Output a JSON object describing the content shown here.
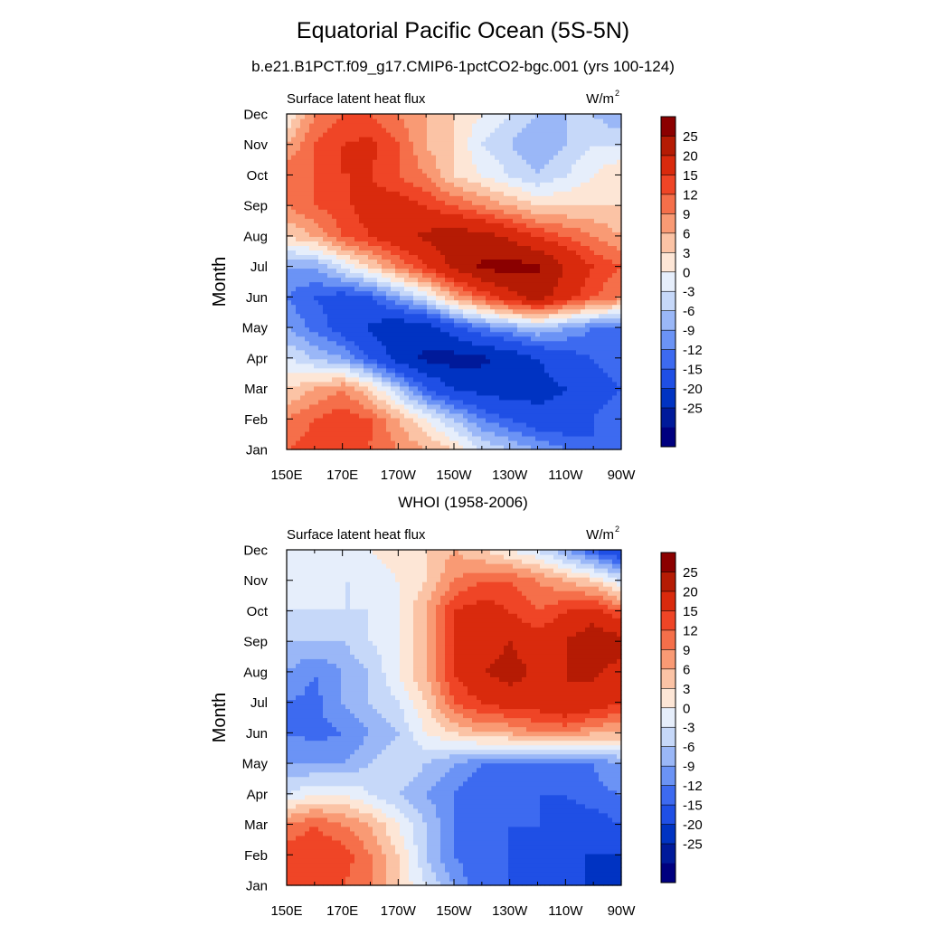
{
  "title": "Equatorial Pacific Ocean (5S-5N)",
  "subtitle": "b.e21.B1PCT.f09_g17.CMIP6-1pctCO2-bgc.001 (yrs 100-124)",
  "chart_data": [
    {
      "type": "heatmap",
      "title": "",
      "left_string": "Surface latent heat flux",
      "units_label": "W/m",
      "units_sup": "2",
      "xlabel": "",
      "ylabel": "Month",
      "x_ticks": [
        "150E",
        "170E",
        "170W",
        "150W",
        "130W",
        "110W",
        "90W"
      ],
      "x_range_lon_east": [
        150,
        270
      ],
      "y_ticks": [
        "Jan",
        "Feb",
        "Mar",
        "Apr",
        "May",
        "Jun",
        "Jul",
        "Aug",
        "Sep",
        "Oct",
        "Nov",
        "Dec"
      ],
      "colorbar_labels": [
        "25",
        "20",
        "15",
        "12",
        "9",
        "6",
        "3",
        "0",
        "-3",
        "-6",
        "-9",
        "-12",
        "-15",
        "-20",
        "-25"
      ],
      "lon_east": [
        150,
        160,
        170,
        180,
        190,
        200,
        210,
        220,
        230,
        240,
        250,
        260,
        270
      ],
      "values": [
        [
          12,
          14,
          14,
          12,
          9,
          6,
          3,
          -3,
          -6,
          -9,
          -12,
          -15,
          -15
        ],
        [
          9,
          12,
          14,
          12,
          6,
          0,
          -6,
          -12,
          -15,
          -18,
          -18,
          -15,
          -12
        ],
        [
          3,
          6,
          9,
          3,
          -6,
          -15,
          -20,
          -22,
          -23,
          -22,
          -20,
          -17,
          -15
        ],
        [
          -3,
          -6,
          -9,
          -15,
          -22,
          -26,
          -27,
          -26,
          -24,
          -20,
          -17,
          -15,
          -12
        ],
        [
          -9,
          -13,
          -17,
          -21,
          -24,
          -23,
          -17,
          -12,
          -9,
          -6,
          -9,
          -12,
          -12
        ],
        [
          -12,
          -15,
          -17,
          -15,
          -9,
          -3,
          6,
          12,
          18,
          22,
          17,
          12,
          9
        ],
        [
          -9,
          -9,
          -3,
          3,
          9,
          15,
          21,
          26,
          27,
          26,
          20,
          15,
          12
        ],
        [
          3,
          6,
          12,
          15,
          18,
          21,
          23,
          22,
          19,
          15,
          12,
          9,
          6
        ],
        [
          9,
          12,
          14,
          17,
          17,
          15,
          12,
          9,
          6,
          3,
          3,
          3,
          3
        ],
        [
          12,
          12,
          15,
          15,
          12,
          9,
          3,
          0,
          -3,
          -6,
          -3,
          0,
          3
        ],
        [
          6,
          12,
          15,
          16,
          12,
          6,
          3,
          -3,
          -6,
          -9,
          -6,
          -3,
          -3
        ],
        [
          0,
          9,
          12,
          12,
          9,
          6,
          3,
          0,
          -3,
          -6,
          -6,
          -6,
          -9
        ]
      ]
    },
    {
      "type": "heatmap",
      "title": "WHOI (1958-2006)",
      "left_string": "Surface latent heat flux",
      "units_label": "W/m",
      "units_sup": "2",
      "xlabel": "",
      "ylabel": "Month",
      "x_ticks": [
        "150E",
        "170E",
        "170W",
        "150W",
        "130W",
        "110W",
        "90W"
      ],
      "x_range_lon_east": [
        150,
        270
      ],
      "y_ticks": [
        "Jan",
        "Feb",
        "Mar",
        "Apr",
        "May",
        "Jun",
        "Jul",
        "Aug",
        "Sep",
        "Oct",
        "Nov",
        "Dec"
      ],
      "colorbar_labels": [
        "25",
        "20",
        "15",
        "12",
        "9",
        "6",
        "3",
        "0",
        "-3",
        "-6",
        "-9",
        "-12",
        "-15",
        "-20",
        "-25"
      ],
      "lon_east": [
        150,
        160,
        170,
        180,
        190,
        200,
        210,
        220,
        230,
        240,
        250,
        260,
        270
      ],
      "values": [
        [
          14,
          14,
          12,
          9,
          3,
          -3,
          -9,
          -15,
          -15,
          -15,
          -18,
          -21,
          -23
        ],
        [
          14,
          15,
          14,
          9,
          3,
          -6,
          -12,
          -15,
          -15,
          -17,
          -20,
          -20,
          -20
        ],
        [
          9,
          12,
          9,
          6,
          0,
          -6,
          -12,
          -15,
          -15,
          -15,
          -17,
          -17,
          -15
        ],
        [
          -3,
          0,
          0,
          -3,
          -6,
          -9,
          -12,
          -15,
          -13,
          -15,
          -15,
          -13,
          -12
        ],
        [
          -9,
          -9,
          -9,
          -6,
          -3,
          -6,
          -9,
          -12,
          -12,
          -12,
          -13,
          -12,
          -9
        ],
        [
          -12,
          -13,
          -12,
          -9,
          -6,
          0,
          3,
          6,
          6,
          9,
          9,
          6,
          6
        ],
        [
          -12,
          -13,
          -9,
          -6,
          -3,
          3,
          12,
          15,
          17,
          17,
          20,
          18,
          15
        ],
        [
          -9,
          -12,
          -9,
          -6,
          0,
          6,
          15,
          20,
          22,
          19,
          20,
          21,
          18
        ],
        [
          -6,
          -6,
          -6,
          -3,
          0,
          6,
          15,
          17,
          20,
          17,
          20,
          24,
          22
        ],
        [
          -3,
          -3,
          -3,
          -3,
          0,
          6,
          15,
          17,
          15,
          12,
          15,
          17,
          12
        ],
        [
          -3,
          -3,
          -3,
          -3,
          0,
          3,
          9,
          12,
          12,
          9,
          6,
          3,
          -3
        ],
        [
          -3,
          -3,
          0,
          0,
          3,
          3,
          6,
          3,
          0,
          -3,
          -9,
          -15,
          -20
        ]
      ]
    }
  ]
}
